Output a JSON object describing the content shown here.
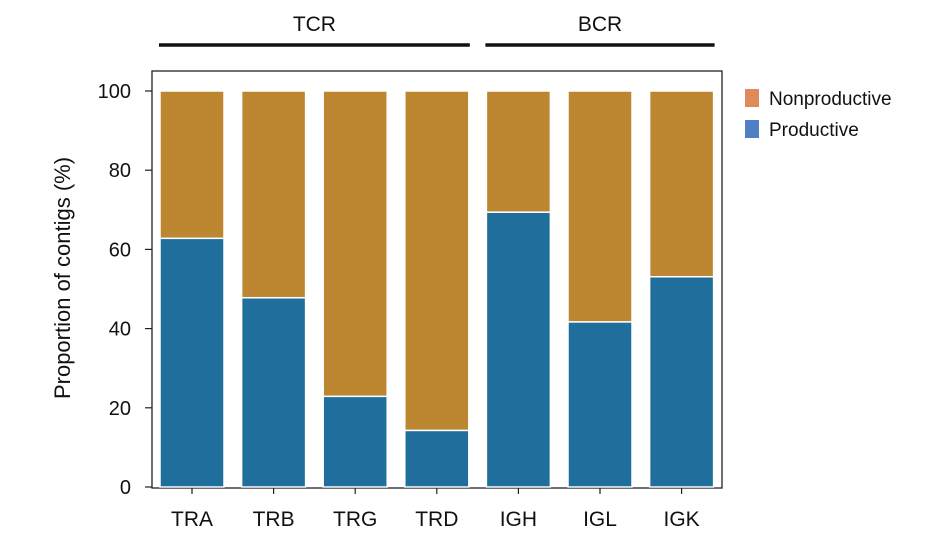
{
  "chart_data": {
    "type": "bar",
    "stacked": true,
    "categories": [
      "TRA",
      "TRB",
      "TRG",
      "TRD",
      "IGH",
      "IGL",
      "IGK"
    ],
    "series": [
      {
        "name": "Productive",
        "values": [
          62.8,
          47.8,
          22.9,
          14.3,
          69.4,
          41.7,
          53.1
        ]
      },
      {
        "name": "Nonproductive",
        "values": [
          37.2,
          52.2,
          77.1,
          85.7,
          30.6,
          58.3,
          46.9
        ]
      }
    ],
    "groups": [
      {
        "label": "TCR",
        "categories": [
          "TRA",
          "TRB",
          "TRG",
          "TRD"
        ]
      },
      {
        "label": "BCR",
        "categories": [
          "IGH",
          "IGL",
          "IGK"
        ]
      }
    ],
    "ylabel": "Proportion of contigs (%)",
    "xlabel": "",
    "ylim": [
      0,
      100
    ],
    "yticks": [
      "0",
      "20",
      "40",
      "60",
      "80",
      "100"
    ],
    "legend": {
      "placement": "top-right, outside plot",
      "entries": [
        "Nonproductive",
        "Productive"
      ],
      "swatch_colors": [
        "#e0895a",
        "#4f80c4"
      ]
    },
    "colors": {
      "Productive": "#1f6e9b",
      "Nonproductive": "#bd8631"
    },
    "grid": false
  }
}
